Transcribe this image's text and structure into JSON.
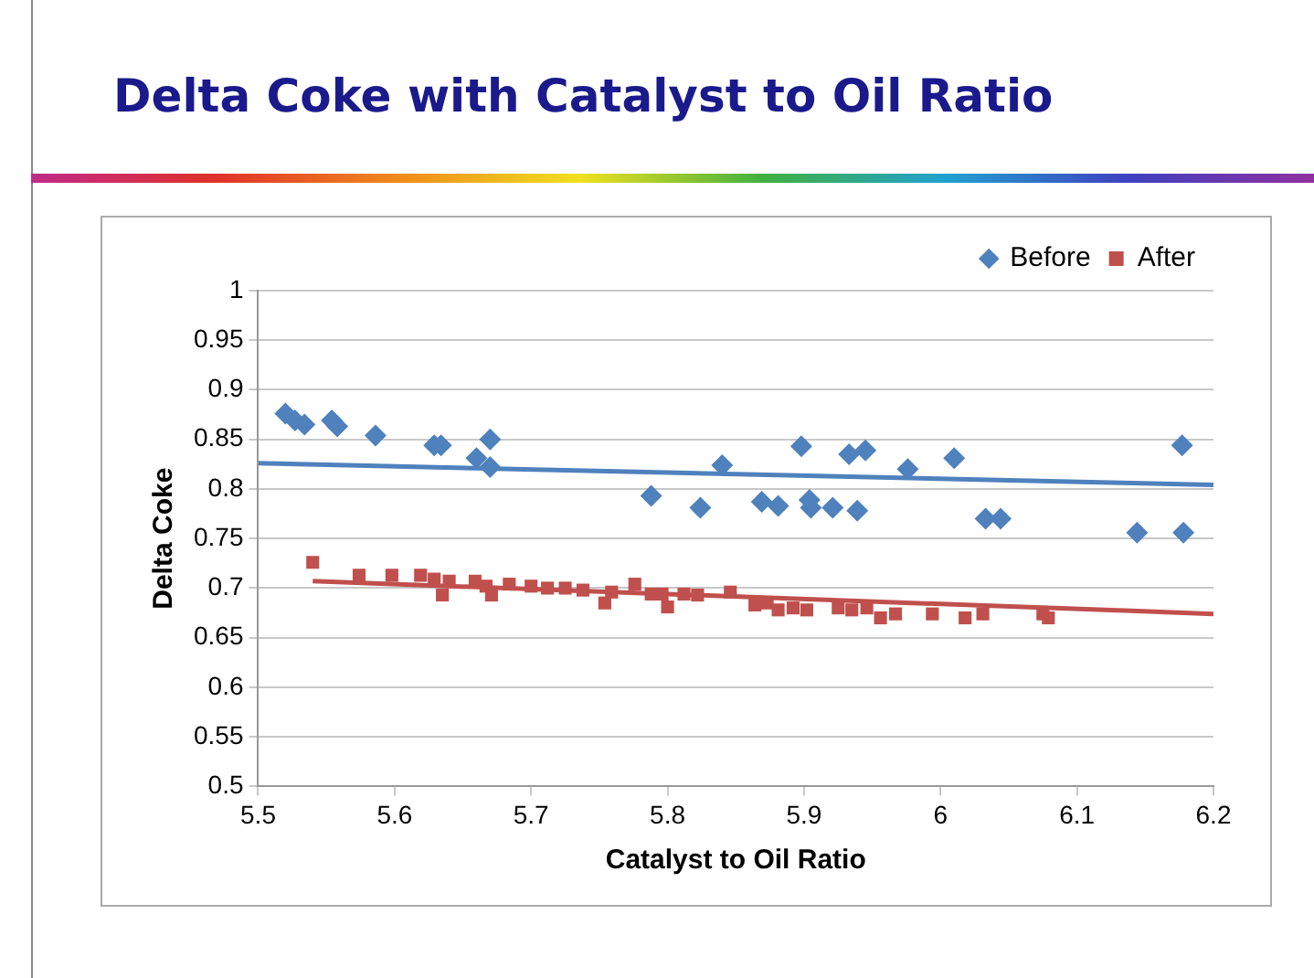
{
  "chart_data": {
    "type": "scatter",
    "title": "Delta Coke with Catalyst to Oil Ratio",
    "xlabel": "Catalyst to Oil Ratio",
    "ylabel": "Delta Coke",
    "xlim": [
      5.5,
      6.2
    ],
    "xticks": [
      5.5,
      5.6,
      5.7,
      5.8,
      5.9,
      6,
      6.1,
      6.2
    ],
    "ylim": [
      0.5,
      1
    ],
    "yticks": [
      0.5,
      0.55,
      0.6,
      0.65,
      0.7,
      0.75,
      0.8,
      0.85,
      0.9,
      0.95,
      1
    ],
    "grid": "y",
    "legend": "top right",
    "series": [
      {
        "name": "Before",
        "marker": "diamond",
        "color": "#4f81bd",
        "x": [
          5.52,
          5.527,
          5.534,
          5.554,
          5.558,
          5.586,
          5.629,
          5.634,
          5.66,
          5.67,
          5.67,
          5.788,
          5.824,
          5.84,
          5.869,
          5.881,
          5.898,
          5.905,
          5.904,
          5.921,
          5.933,
          5.945,
          5.939,
          5.976,
          6.01,
          6.033,
          6.044,
          6.144,
          6.177,
          6.178
        ],
        "values": [
          0.876,
          0.869,
          0.865,
          0.869,
          0.863,
          0.854,
          0.844,
          0.844,
          0.831,
          0.822,
          0.85,
          0.793,
          0.781,
          0.824,
          0.787,
          0.783,
          0.843,
          0.781,
          0.789,
          0.781,
          0.835,
          0.839,
          0.778,
          0.82,
          0.831,
          0.77,
          0.77,
          0.756,
          0.844,
          0.756
        ]
      },
      {
        "name": "After",
        "marker": "square",
        "color": "#c0504d",
        "x": [
          5.54,
          5.574,
          5.598,
          5.619,
          5.629,
          5.635,
          5.64,
          5.659,
          5.667,
          5.671,
          5.684,
          5.7,
          5.712,
          5.725,
          5.738,
          5.754,
          5.759,
          5.776,
          5.788,
          5.796,
          5.8,
          5.812,
          5.822,
          5.846,
          5.864,
          5.873,
          5.881,
          5.892,
          5.902,
          5.925,
          5.935,
          5.946,
          5.956,
          5.967,
          5.994,
          6.018,
          6.031,
          6.075,
          6.079
        ],
        "values": [
          0.726,
          0.713,
          0.713,
          0.713,
          0.709,
          0.693,
          0.707,
          0.707,
          0.702,
          0.693,
          0.704,
          0.702,
          0.7,
          0.7,
          0.698,
          0.685,
          0.696,
          0.704,
          0.694,
          0.694,
          0.681,
          0.694,
          0.693,
          0.696,
          0.683,
          0.685,
          0.678,
          0.68,
          0.678,
          0.68,
          0.678,
          0.68,
          0.67,
          0.674,
          0.674,
          0.67,
          0.674,
          0.674,
          0.67
        ]
      },
      {
        "type": "line",
        "line_style": "solid",
        "color": "#4f81bd",
        "x": [
          5.5,
          6.2
        ],
        "values": [
          0.826,
          0.804
        ]
      },
      {
        "type": "line",
        "line_style": "solid",
        "color": "#c0504d",
        "x": [
          5.54,
          6.2
        ],
        "values": [
          0.707,
          0.674
        ]
      }
    ]
  }
}
